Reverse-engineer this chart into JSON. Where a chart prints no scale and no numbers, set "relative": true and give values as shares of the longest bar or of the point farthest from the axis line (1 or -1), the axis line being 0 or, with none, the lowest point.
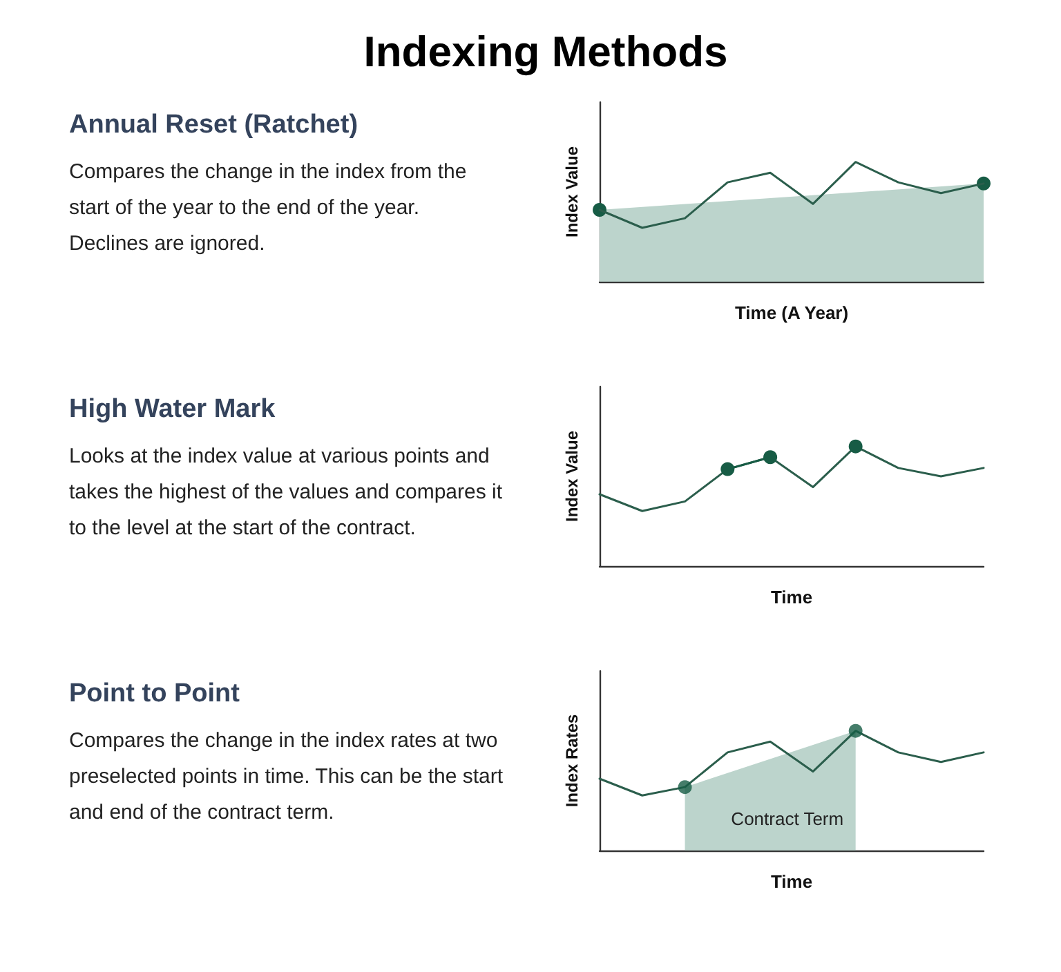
{
  "chart_data": [
    {
      "type": "other",
      "title": "Indexing Methods"
    },
    {
      "type": "other",
      "title": "Annual Reset (Ratchet)",
      "annotations": [
        "Compares the change in the index from the start of the year to the end of the year. Declines are ignored."
      ]
    },
    {
      "type": "line",
      "relative": true,
      "xlabel": "Time (A Year)",
      "ylabel": "Index Value",
      "categories": [
        null,
        null,
        null,
        null,
        null,
        null,
        null,
        null,
        null,
        null
      ],
      "series": [
        {
          "type": "area",
          "color": "#bcd4cc",
          "marker": "circle",
          "colors": [
            "#175c45",
            null,
            null,
            null,
            null,
            null,
            null,
            null,
            null,
            "#175c45"
          ],
          "values": [
            0.6,
            null,
            null,
            null,
            null,
            null,
            null,
            null,
            null,
            0.82
          ]
        },
        {
          "type": "line",
          "color": "#2b5e4c",
          "marker": "none",
          "values": [
            0.6,
            0.45,
            0.53,
            0.83,
            0.91,
            0.65,
            1,
            0.83,
            0.74,
            0.82
          ]
        }
      ]
    },
    {
      "type": "other",
      "title": "High Water Mark",
      "annotations": [
        "Looks at the index value at various points and takes the highest of the values and compares it to the level at the start of the contract."
      ]
    },
    {
      "type": "line",
      "relative": true,
      "xlabel": "Time",
      "ylabel": "Index Value",
      "categories": [
        null,
        null,
        null,
        null,
        null,
        null,
        null,
        null,
        null,
        null
      ],
      "series": [
        {
          "type": "line",
          "color": "#2b5e4c",
          "marker": "none",
          "values": [
            0.6,
            0.46,
            0.54,
            0.81,
            0.91,
            0.66,
            1,
            0.82,
            0.75,
            0.82
          ]
        },
        {
          "type": "line",
          "color": "#175c45",
          "marker": "circle",
          "values": [
            null,
            null,
            null,
            0.81,
            0.91,
            null,
            1,
            null,
            null,
            null
          ]
        }
      ]
    },
    {
      "type": "other",
      "title": "Point to Point",
      "annotations": [
        "Compares the change in the index rates at two preselected points in time. This can be the start and end of the contract term."
      ]
    },
    {
      "type": "line",
      "relative": true,
      "xlabel": "Time",
      "ylabel": "Index Rates",
      "categories": [
        null,
        null,
        null,
        null,
        null,
        null,
        null,
        null,
        null,
        null
      ],
      "annotations": [
        "Contract Term"
      ],
      "series": [
        {
          "type": "area",
          "color": "#bcd4cc",
          "marker": "none",
          "values": [
            null,
            null,
            0.53,
            null,
            null,
            null,
            1,
            null,
            null,
            null
          ]
        },
        {
          "type": "line",
          "color": "#2b5e4c",
          "marker": "none",
          "values": [
            0.6,
            0.46,
            0.53,
            0.82,
            0.91,
            0.66,
            1,
            0.82,
            0.74,
            0.82
          ]
        },
        {
          "type": "scatter",
          "color": "#175c45",
          "marker": "circle",
          "values": [
            null,
            null,
            0.53,
            null,
            null,
            null,
            1,
            null,
            null,
            null
          ]
        }
      ]
    }
  ]
}
